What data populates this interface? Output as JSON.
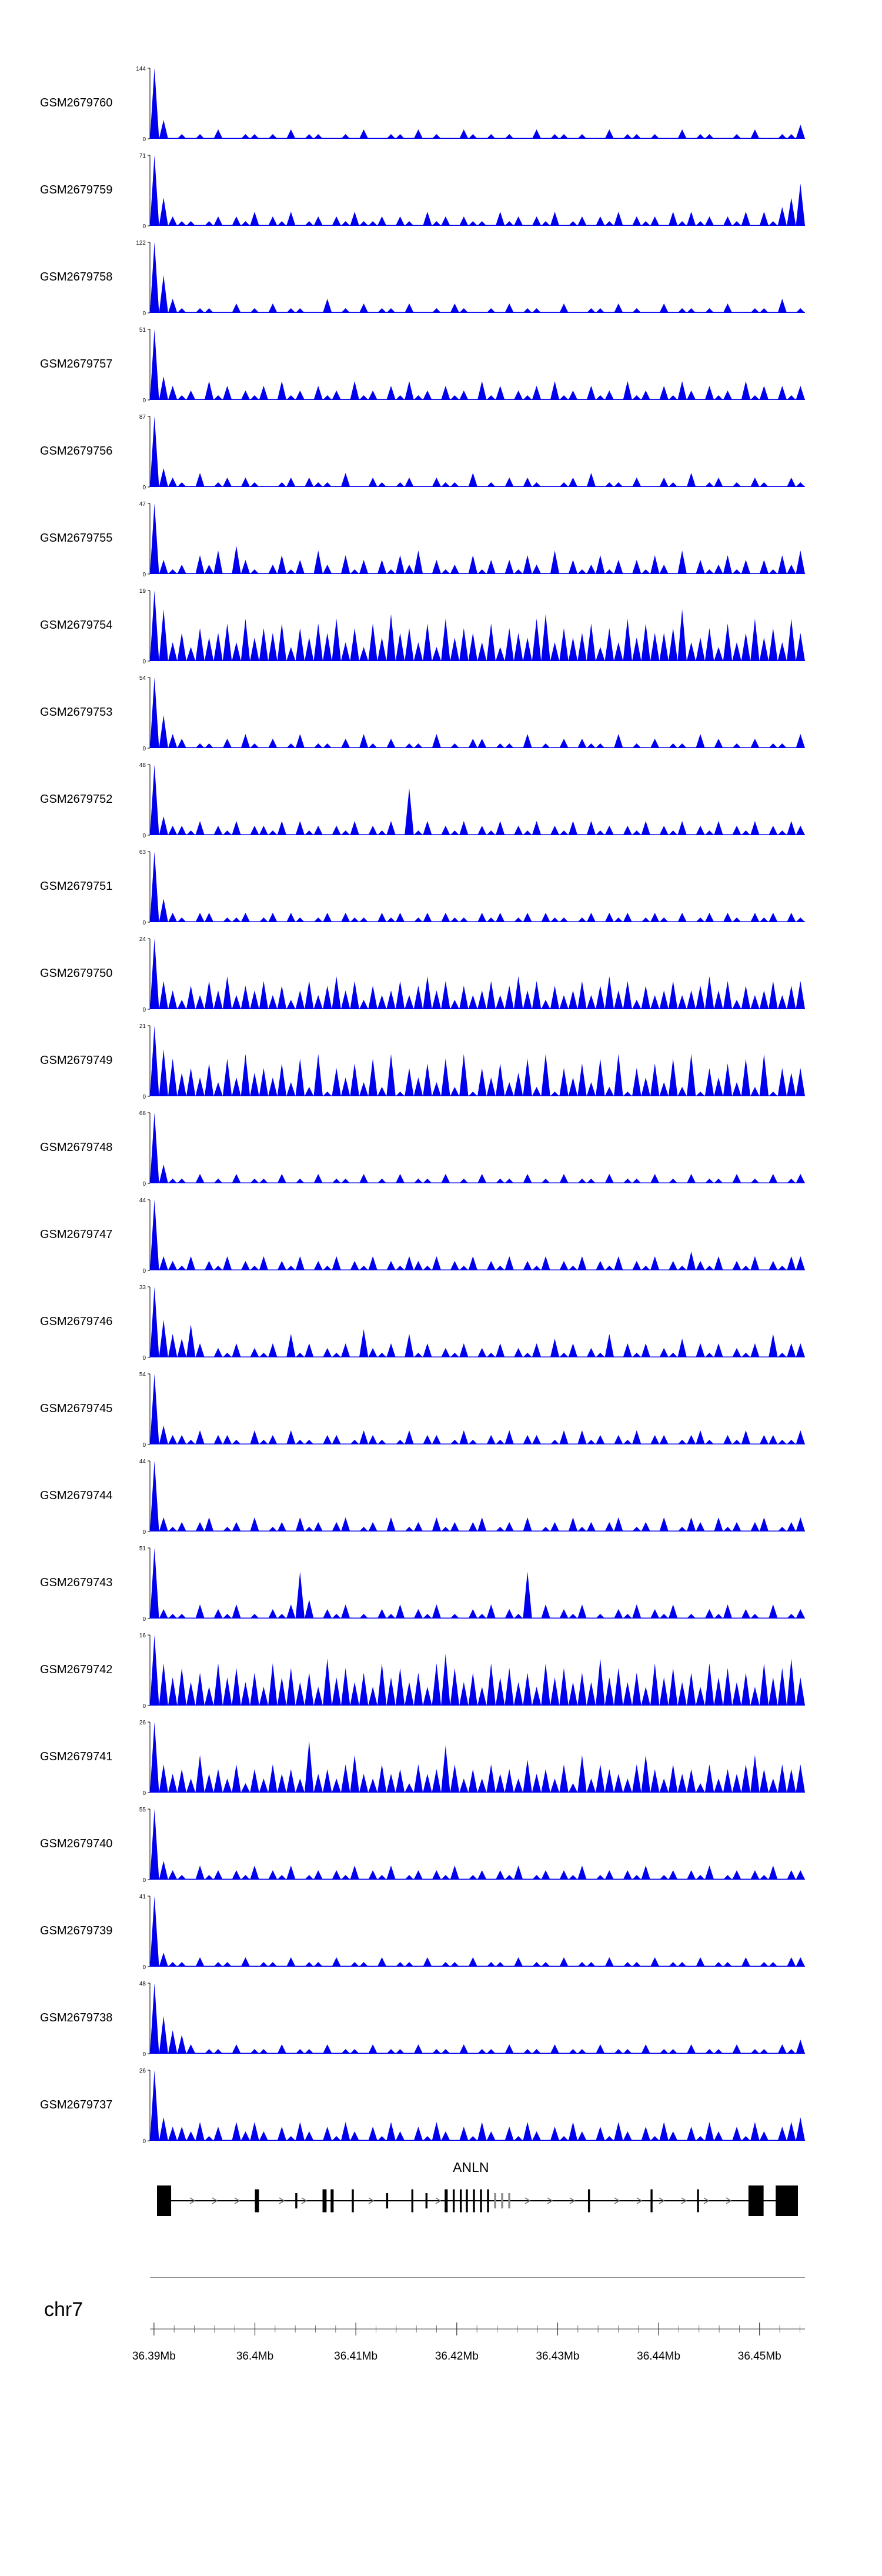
{
  "chart_data": {
    "type": "area",
    "title": "",
    "accent_color": "#0000EE",
    "y_min_label": "0",
    "x_axis": {
      "chromosome_label": "chr7",
      "range_mb": [
        36.3896,
        36.4545
      ],
      "minor_tick_step_mb": 0.002,
      "ticks": [
        {
          "mb": 36.39,
          "label": "36.39Mb"
        },
        {
          "mb": 36.4,
          "label": "36.4Mb"
        },
        {
          "mb": 36.41,
          "label": "36.41Mb"
        },
        {
          "mb": 36.42,
          "label": "36.42Mb"
        },
        {
          "mb": 36.43,
          "label": "36.43Mb"
        },
        {
          "mb": 36.44,
          "label": "36.44Mb"
        },
        {
          "mb": 36.45,
          "label": "36.45Mb"
        }
      ]
    },
    "gene_track": {
      "gene_name": "ANLN",
      "strand": "+",
      "label_mb": 36.4214,
      "exon_color": "#000000",
      "line_color": "#000000",
      "arrow_color": "#666666",
      "exons": [
        {
          "start_mb": 36.3903,
          "end_mb": 36.3917,
          "h": 1.0
        },
        {
          "start_mb": 36.4,
          "end_mb": 36.4004,
          "h": 0.75
        },
        {
          "start_mb": 36.404,
          "end_mb": 36.4042,
          "h": 0.5
        },
        {
          "start_mb": 36.4067,
          "end_mb": 36.4071,
          "h": 0.75
        },
        {
          "start_mb": 36.4075,
          "end_mb": 36.4078,
          "h": 0.75
        },
        {
          "start_mb": 36.4096,
          "end_mb": 36.4098,
          "h": 0.75
        },
        {
          "start_mb": 36.413,
          "end_mb": 36.4132,
          "h": 0.5
        },
        {
          "start_mb": 36.4155,
          "end_mb": 36.4157,
          "h": 0.75
        },
        {
          "start_mb": 36.4169,
          "end_mb": 36.4171,
          "h": 0.5
        },
        {
          "start_mb": 36.4188,
          "end_mb": 36.4191,
          "h": 0.75
        },
        {
          "start_mb": 36.4196,
          "end_mb": 36.4198,
          "h": 0.75
        },
        {
          "start_mb": 36.4203,
          "end_mb": 36.4205,
          "h": 0.75
        },
        {
          "start_mb": 36.4209,
          "end_mb": 36.4211,
          "h": 0.75
        },
        {
          "start_mb": 36.4216,
          "end_mb": 36.4218,
          "h": 0.75
        },
        {
          "start_mb": 36.4223,
          "end_mb": 36.4225,
          "h": 0.75
        },
        {
          "start_mb": 36.423,
          "end_mb": 36.4232,
          "h": 0.75
        },
        {
          "start_mb": 36.4237,
          "end_mb": 36.4239,
          "h": 0.5,
          "color": "#8a8a8a"
        },
        {
          "start_mb": 36.4244,
          "end_mb": 36.4246,
          "h": 0.5,
          "color": "#8a8a8a"
        },
        {
          "start_mb": 36.4251,
          "end_mb": 36.4253,
          "h": 0.5,
          "color": "#8a8a8a"
        },
        {
          "start_mb": 36.433,
          "end_mb": 36.4332,
          "h": 0.75
        },
        {
          "start_mb": 36.4392,
          "end_mb": 36.4394,
          "h": 0.75
        },
        {
          "start_mb": 36.4438,
          "end_mb": 36.444,
          "h": 0.75
        },
        {
          "start_mb": 36.4489,
          "end_mb": 36.4504,
          "h": 1.0
        },
        {
          "start_mb": 36.4516,
          "end_mb": 36.4538,
          "h": 1.0
        }
      ]
    },
    "tracks": [
      {
        "label": "GSM2679760",
        "ymax": 144,
        "peaks": "f40101020011010201100102001102010021010100201101002011010020110010200113"
      },
      {
        "label": "GSM2679759",
        "ymax": 71,
        "peaks": "f62110120213021301202131120210312021103120213012021302120313120213031469"
      },
      {
        "label": "GSM2679758",
        "ymax": 122,
        "peaks": "f83101100201020110030102011020010210010201100200110201002011010200110301"
      },
      {
        "label": "GSM2679757",
        "ymax": 51,
        "peaks": "f53120413021304120312041203141203120413021304120312041203142031204130313"
      },
      {
        "label": "GSM2679756",
        "ymax": 87,
        "peaks": "f42103012021001202110300210120021103010202100120301102002103012010210021"
      },
      {
        "label": "GSM2679755",
        "ymax": 47,
        "peaks": "f31204250631024130520413031425031204130314205031241303142050312413031425"
      },
      {
        "label": "GSM2679754",
        "ymax": 19,
        "peaks": "fb463756849576837586947385a6748395764837659a47568374958667b4573846957496"
      },
      {
        "label": "GSM2679753",
        "ymax": 54,
        "peaks": "f73201102031020130110203102011030102201103010202110301020110302010201103"
      },
      {
        "label": "GSM2679752",
        "ymax": 48,
        "peaks": "f422130213022130312021302130a1302130213021302130312021302130213021302132"
      },
      {
        "label": "GSM2679751",
        "ymax": 63,
        "peaks": "f52102201120120210120211021201202110212012021101202120121020120210212021"
      },
      {
        "label": "GSM2679750",
        "ymax": 24,
        "peaks": "f64253647354635246357462534635746253463574625346357462534634574625346356"
      },
      {
        "label": "GSM2679749",
        "ymax": 21,
        "peaks": "fa8564738495647382916473829164738291647358291647382916473829164738291656"
      },
      {
        "label": "GSM2679748",
        "ymax": 66,
        "peaks": "f41102010201102010201102010201102010201102010201102011020102011020102012"
      },
      {
        "label": "GSM2679747",
        "ymax": 44,
        "peaks": "f32130213021302130213021302132130213021302130213021302130214213021302133"
      },
      {
        "label": "GSM2679746",
        "ymax": 33,
        "peaks": "f85473021302130513021306213051302130213021304130215031302140313021305133"
      },
      {
        "label": "GSM2679745",
        "ymax": 54,
        "peaks": "f42213022103120311022013210130220131021302201303120213022012310213022113"
      },
      {
        "label": "GSM2679744",
        "ymax": 44,
        "peaks": "f31202301203012031202301203012031202301203012031202301203013203120230123"
      },
      {
        "label": "GSM2679743",
        "ymax": 51,
        "peaks": "f211030213010213a402130102130213010213021a030213010213021301021302103012"
      },
      {
        "label": "GSM2679742",
        "ymax": 16,
        "peaks": "f968574968574968574a685749685749b8574968574968575a68574968574968574968a6"
      },
      {
        "label": "GSM2679741",
        "ymax": 26,
        "peaks": "f6453845362536453b45368436452645a635364537453628365436853645263546853656"
      },
      {
        "label": "GSM2679740",
        "ymax": 55,
        "peaks": "f42103120213021301202130213012021301202130120213012021301202130120213022"
      },
      {
        "label": "GSM2679739",
        "ymax": 41,
        "peaks": "f31102011020110201102011020110201102011020110201102011020110201102011022"
      },
      {
        "label": "GSM2679738",
        "ymax": 48,
        "peaks": "f85420110201102011020110201102011020110201102011020110201102011020110213"
      },
      {
        "label": "GSM2679737",
        "ymax": 26,
        "peaks": "f53324130424203142031420314203142031420314203142031420314203142031420345"
      }
    ]
  }
}
